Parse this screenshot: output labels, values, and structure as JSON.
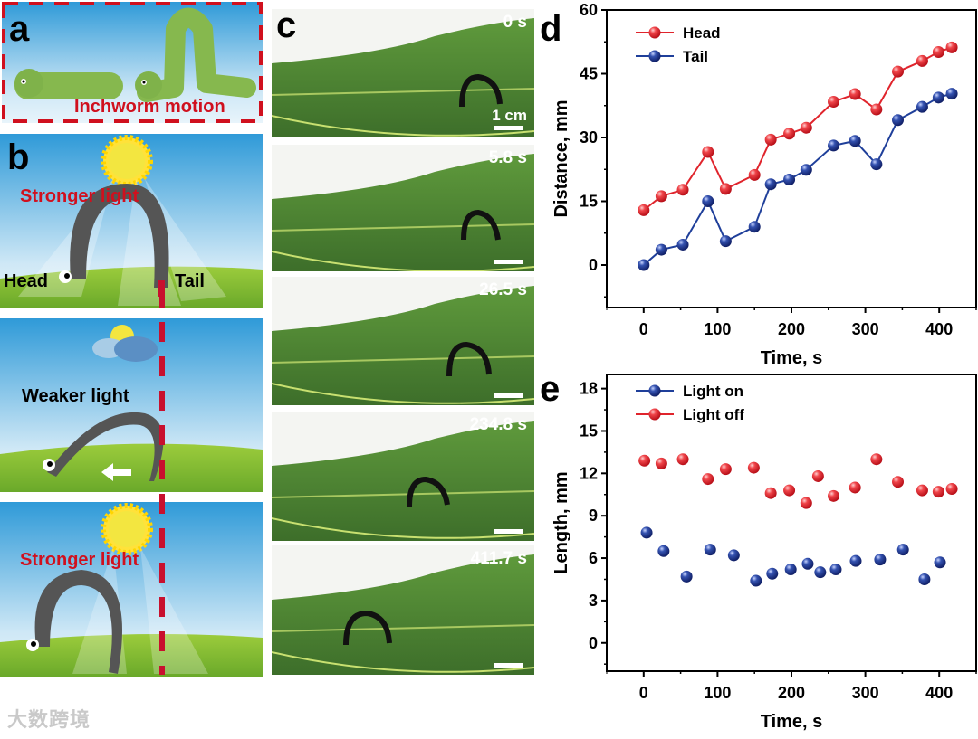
{
  "panels": {
    "a": {
      "label": "a",
      "caption": "Inchworm motion"
    },
    "b": {
      "label": "b",
      "frames": [
        {
          "light": "Stronger light",
          "head": "Head",
          "tail": "Tail"
        },
        {
          "light": "Weaker light"
        },
        {
          "light": "Stronger light"
        }
      ]
    },
    "c": {
      "label": "c",
      "scale_label": "1 cm",
      "frames": [
        "0 s",
        "5.8 s",
        "26.5 s",
        "234.8 s",
        "411.7 s"
      ]
    },
    "d": {
      "label": "d"
    },
    "e": {
      "label": "e"
    }
  },
  "watermark": "大数跨境",
  "colors": {
    "red": "#e0242c",
    "blue": "#1f3f9a",
    "dash": "#c8102e"
  },
  "chart_data": [
    {
      "id": "d",
      "type": "line",
      "xlabel": "Time, s",
      "ylabel": "Distance, mm",
      "xlim": [
        -50,
        450
      ],
      "ylim": [
        -10,
        60
      ],
      "xticks": [
        0,
        100,
        200,
        300,
        400
      ],
      "yticks": [
        0,
        15,
        30,
        45,
        60
      ],
      "legend": "top-left",
      "series": [
        {
          "name": "Head",
          "color": "#e0242c",
          "x": [
            0,
            24,
            53,
            87,
            111,
            150,
            172,
            197,
            220,
            257,
            286,
            315,
            344,
            377,
            399,
            417
          ],
          "y": [
            12.9,
            16.2,
            17.7,
            26.6,
            17.9,
            21.2,
            29.5,
            30.9,
            32.3,
            38.4,
            40.2,
            36.6,
            45.5,
            48.0,
            50.1,
            51.2
          ]
        },
        {
          "name": "Tail",
          "color": "#1f3f9a",
          "x": [
            0,
            24,
            53,
            87,
            111,
            150,
            172,
            197,
            220,
            257,
            286,
            315,
            344,
            377,
            399,
            417
          ],
          "y": [
            0,
            3.6,
            4.8,
            15.0,
            5.6,
            9.0,
            19.0,
            20.1,
            22.4,
            28.1,
            29.2,
            23.7,
            34.1,
            37.2,
            39.4,
            40.3
          ]
        }
      ]
    },
    {
      "id": "e",
      "type": "scatter",
      "xlabel": "Time, s",
      "ylabel": "Length, mm",
      "xlim": [
        -50,
        450
      ],
      "ylim": [
        -2,
        19
      ],
      "xticks": [
        0,
        100,
        200,
        300,
        400
      ],
      "yticks": [
        0,
        3,
        6,
        9,
        12,
        15,
        18
      ],
      "legend": "top-left",
      "series": [
        {
          "name": "Light on",
          "color": "#1f3f9a",
          "x": [
            4,
            27,
            58,
            90,
            122,
            152,
            174,
            199,
            222,
            239,
            260,
            287,
            320,
            351,
            380,
            401
          ],
          "y": [
            7.8,
            6.5,
            4.7,
            6.6,
            6.2,
            4.4,
            4.9,
            5.2,
            5.6,
            5.0,
            5.2,
            5.8,
            5.9,
            6.6,
            4.5,
            5.7
          ]
        },
        {
          "name": "Light off",
          "color": "#e0242c",
          "x": [
            1,
            24,
            53,
            87,
            111,
            149,
            172,
            197,
            220,
            236,
            257,
            286,
            315,
            344,
            377,
            399,
            417
          ],
          "y": [
            12.9,
            12.7,
            13.0,
            11.6,
            12.3,
            12.4,
            10.6,
            10.8,
            9.9,
            11.8,
            10.4,
            11.0,
            13.0,
            11.4,
            10.8,
            10.7,
            10.9
          ]
        }
      ]
    }
  ]
}
